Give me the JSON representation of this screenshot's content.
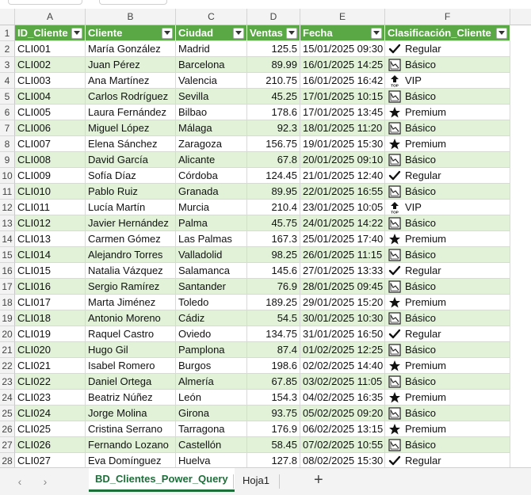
{
  "columns": [
    "A",
    "B",
    "C",
    "D",
    "E",
    "F"
  ],
  "header": [
    "ID_Cliente",
    "Cliente",
    "Ciudad",
    "Ventas",
    "Fecha",
    "Clasificación_Cliente"
  ],
  "rows": [
    [
      "CLI001",
      "María González",
      "Madrid",
      "125.5",
      "15/01/2025 09:30",
      "Regular"
    ],
    [
      "CLI002",
      "Juan Pérez",
      "Barcelona",
      "89.99",
      "16/01/2025 14:25",
      "Básico"
    ],
    [
      "CLI003",
      "Ana Martínez",
      "Valencia",
      "210.75",
      "16/01/2025 16:42",
      "VIP"
    ],
    [
      "CLI004",
      "Carlos Rodríguez",
      "Sevilla",
      "45.25",
      "17/01/2025 10:15",
      "Básico"
    ],
    [
      "CLI005",
      "Laura Fernández",
      "Bilbao",
      "178.6",
      "17/01/2025 13:45",
      "Premium"
    ],
    [
      "CLI006",
      "Miguel López",
      "Málaga",
      "92.3",
      "18/01/2025 11:20",
      "Básico"
    ],
    [
      "CLI007",
      "Elena Sánchez",
      "Zaragoza",
      "156.75",
      "19/01/2025 15:30",
      "Premium"
    ],
    [
      "CLI008",
      "David García",
      "Alicante",
      "67.8",
      "20/01/2025 09:10",
      "Básico"
    ],
    [
      "CLI009",
      "Sofía Díaz",
      "Córdoba",
      "124.45",
      "21/01/2025 12:40",
      "Regular"
    ],
    [
      "CLI010",
      "Pablo Ruiz",
      "Granada",
      "89.95",
      "22/01/2025 16:55",
      "Básico"
    ],
    [
      "CLI011",
      "Lucía Martín",
      "Murcia",
      "210.4",
      "23/01/2025 10:05",
      "VIP"
    ],
    [
      "CLI012",
      "Javier Hernández",
      "Palma",
      "45.75",
      "24/01/2025 14:22",
      "Básico"
    ],
    [
      "CLI013",
      "Carmen Gómez",
      "Las Palmas",
      "167.3",
      "25/01/2025 17:40",
      "Premium"
    ],
    [
      "CLI014",
      "Alejandro Torres",
      "Valladolid",
      "98.25",
      "26/01/2025 11:15",
      "Básico"
    ],
    [
      "CLI015",
      "Natalia Vázquez",
      "Salamanca",
      "145.6",
      "27/01/2025 13:33",
      "Regular"
    ],
    [
      "CLI016",
      "Sergio Ramírez",
      "Santander",
      "76.9",
      "28/01/2025 09:45",
      "Básico"
    ],
    [
      "CLI017",
      "Marta Jiménez",
      "Toledo",
      "189.25",
      "29/01/2025 15:20",
      "Premium"
    ],
    [
      "CLI018",
      "Antonio Moreno",
      "Cádiz",
      "54.5",
      "30/01/2025 10:30",
      "Básico"
    ],
    [
      "CLI019",
      "Raquel Castro",
      "Oviedo",
      "134.75",
      "31/01/2025 16:50",
      "Regular"
    ],
    [
      "CLI020",
      "Hugo Gil",
      "Pamplona",
      "87.4",
      "01/02/2025 12:25",
      "Básico"
    ],
    [
      "CLI021",
      "Isabel Romero",
      "Burgos",
      "198.6",
      "02/02/2025 14:40",
      "Premium"
    ],
    [
      "CLI022",
      "Daniel Ortega",
      "Almería",
      "67.85",
      "03/02/2025 11:05",
      "Básico"
    ],
    [
      "CLI023",
      "Beatriz Núñez",
      "León",
      "154.3",
      "04/02/2025 16:35",
      "Premium"
    ],
    [
      "CLI024",
      "Jorge Molina",
      "Girona",
      "93.75",
      "05/02/2025 09:20",
      "Básico"
    ],
    [
      "CLI025",
      "Cristina Serrano",
      "Tarragona",
      "176.9",
      "06/02/2025 13:15",
      "Premium"
    ],
    [
      "CLI026",
      "Fernando Lozano",
      "Castellón",
      "58.45",
      "07/02/2025 10:55",
      "Básico"
    ],
    [
      "CLI027",
      "Eva Domínguez",
      "Huelva",
      "127.8",
      "08/02/2025 15:30",
      "Regular"
    ]
  ],
  "tier_icons": {
    "Regular": "check-icon",
    "Básico": "chart-icon",
    "VIP": "top-arrow-icon",
    "Premium": "star-icon"
  },
  "sheet_tabs": [
    "BD_Clientes_Power_Query",
    "Hoja1"
  ],
  "add_sheet": "+",
  "vip_icon_text": "TOP",
  "colors": {
    "header_green": "#5aa845",
    "band_green": "#e1f2d9",
    "active_tab": "#1d6f3a"
  }
}
